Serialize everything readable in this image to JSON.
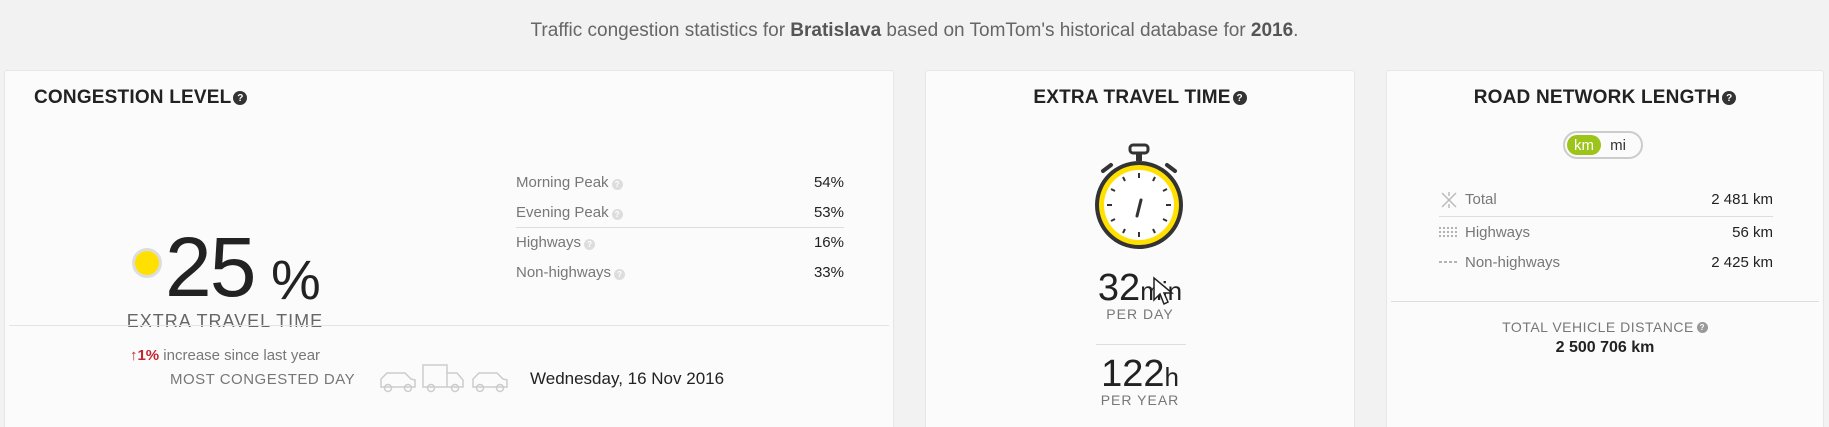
{
  "intro": {
    "prefix": "Traffic congestion statistics for ",
    "city": "Bratislava",
    "middle": " based on TomTom's historical database for ",
    "year": "2016",
    "suffix": "."
  },
  "congestion": {
    "title": "CONGESTION LEVEL",
    "help": "?",
    "value": "25",
    "unit": "%",
    "label": "EXTRA TRAVEL TIME",
    "increase_value": "1%",
    "increase_text": " increase since last year",
    "peaks": [
      {
        "label": "Morning Peak",
        "value": "54%"
      },
      {
        "label": "Evening Peak",
        "value": "53%"
      },
      {
        "label": "Highways",
        "value": "16%"
      },
      {
        "label": "Non-highways",
        "value": "33%"
      }
    ],
    "most_congested_label": "MOST CONGESTED DAY",
    "most_congested_value": "Wednesday, 16 Nov 2016",
    "level_color": "#ffe000"
  },
  "travel": {
    "title": "EXTRA TRAVEL TIME",
    "help": "?",
    "per_day_value": "32",
    "per_day_unit": "min",
    "per_day_label": "PER DAY",
    "per_year_value": "122",
    "per_year_unit": "h",
    "per_year_label": "PER YEAR"
  },
  "road": {
    "title": "ROAD NETWORK LENGTH",
    "help": "?",
    "units": {
      "active": "km",
      "inactive": "mi"
    },
    "rows": [
      {
        "label": "Total",
        "value": "2 481 km",
        "icon": "total-icon"
      },
      {
        "label": "Highways",
        "value": "56 km",
        "icon": "highways-icon"
      },
      {
        "label": "Non-highways",
        "value": "2 425 km",
        "icon": "non-highways-icon"
      }
    ],
    "tvd_label": "TOTAL VEHICLE DISTANCE",
    "tvd_value": "2 500 706 km",
    "accent": "#9dc41a"
  }
}
